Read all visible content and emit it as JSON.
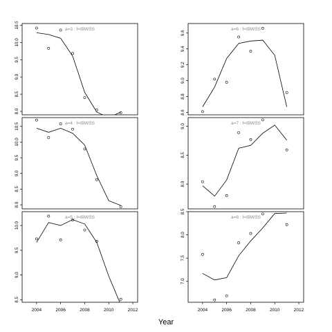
{
  "figure": {
    "xlabel": "Year",
    "x_ticks": [
      2004,
      2006,
      2008,
      2010,
      2012
    ],
    "xlim": [
      2002.8,
      2012.4
    ]
  },
  "chart_data": [
    {
      "type": "line",
      "panel": "left-1",
      "title": "a=3 : f=IBWSS",
      "ylim": [
        7.9,
        10.55
      ],
      "y_ticks": [
        "8.0",
        "8.5",
        "9.0",
        "9.5",
        "10.0",
        "10.5"
      ],
      "show_x_ticks": false,
      "line": {
        "x": [
          2004,
          2005,
          2006,
          2007,
          2008,
          2009,
          2010,
          2011
        ],
        "y": [
          10.28,
          10.23,
          10.12,
          9.6,
          8.55,
          7.98,
          7.82,
          7.98
        ]
      },
      "points": {
        "x": [
          2004,
          2005,
          2006,
          2007,
          2008,
          2009,
          2011
        ],
        "y": [
          10.42,
          9.83,
          10.36,
          9.68,
          8.4,
          8.04,
          7.96
        ]
      }
    },
    {
      "type": "line",
      "panel": "right-1",
      "title": "a=6 : f=IBWSS",
      "ylim": [
        8.57,
        9.72
      ],
      "y_ticks": [
        "8.6",
        "8.8",
        "9.0",
        "9.2",
        "9.4",
        "9.6"
      ],
      "show_x_ticks": false,
      "line": {
        "x": [
          2004,
          2005,
          2006,
          2007,
          2008,
          2009,
          2010,
          2011
        ],
        "y": [
          8.67,
          8.92,
          9.28,
          9.47,
          9.5,
          9.51,
          9.32,
          8.67
        ]
      },
      "points": {
        "x": [
          2004,
          2005,
          2006,
          2007,
          2008,
          2009,
          2011
        ],
        "y": [
          8.61,
          9.02,
          8.98,
          9.55,
          9.37,
          9.66,
          8.85
        ]
      }
    },
    {
      "type": "line",
      "panel": "left-2",
      "title": "a=4 : f=IBWSS",
      "ylim": [
        7.87,
        10.78
      ],
      "y_ticks": [
        "8.0",
        "8.5",
        "9.0",
        "9.5",
        "10.0",
        "10.5"
      ],
      "show_x_ticks": false,
      "line": {
        "x": [
          2004,
          2005,
          2006,
          2007,
          2008,
          2009,
          2010,
          2011
        ],
        "y": [
          10.44,
          10.31,
          10.44,
          10.28,
          9.9,
          8.93,
          8.13,
          7.98
        ]
      },
      "points": {
        "x": [
          2004,
          2005,
          2006,
          2007,
          2008,
          2009,
          2011
        ],
        "y": [
          10.7,
          10.14,
          10.58,
          10.41,
          9.78,
          8.8,
          7.94
        ]
      }
    },
    {
      "type": "line",
      "panel": "right-2",
      "title": "a=7 : f=IBWSS",
      "ylim": [
        7.57,
        9.15
      ],
      "y_ticks": [
        "8.0",
        "8.5",
        "9.0"
      ],
      "show_x_ticks": false,
      "line": {
        "x": [
          2004,
          2005,
          2006,
          2007,
          2008,
          2009,
          2010,
          2011
        ],
        "y": [
          7.97,
          7.79,
          8.07,
          8.62,
          8.67,
          8.88,
          9.02,
          8.76
        ]
      },
      "points": {
        "x": [
          2004,
          2005,
          2006,
          2007,
          2008,
          2009,
          2011
        ],
        "y": [
          8.04,
          7.61,
          7.8,
          8.89,
          8.77,
          9.11,
          8.59
        ]
      }
    },
    {
      "type": "line",
      "panel": "left-3",
      "title": "a=5 : f=IBWSS",
      "ylim": [
        8.45,
        10.28
      ],
      "y_ticks": [
        "8.5",
        "9.0",
        "9.5",
        "10.0"
      ],
      "show_x_ticks": true,
      "line": {
        "x": [
          2004,
          2005,
          2006,
          2007,
          2008,
          2009,
          2010,
          2011
        ],
        "y": [
          9.66,
          10.06,
          10.0,
          10.12,
          10.03,
          9.66,
          8.98,
          8.4
        ]
      },
      "points": {
        "x": [
          2004,
          2005,
          2006,
          2007,
          2008,
          2009,
          2011
        ],
        "y": [
          9.73,
          10.19,
          9.71,
          10.11,
          9.91,
          9.68,
          8.51
        ]
      }
    },
    {
      "type": "line",
      "panel": "right-3",
      "title": "a=8 : f=IBWSS",
      "ylim": [
        6.55,
        8.5
      ],
      "y_ticks": [
        "7.0",
        "7.5",
        "8.0",
        "8.5"
      ],
      "show_x_ticks": true,
      "line": {
        "x": [
          2004,
          2005,
          2006,
          2007,
          2008,
          2009,
          2010,
          2011
        ],
        "y": [
          7.17,
          7.03,
          7.08,
          7.55,
          7.87,
          8.15,
          8.46,
          8.47
        ]
      },
      "points": {
        "x": [
          2004,
          2005,
          2006,
          2007,
          2008,
          2009,
          2011
        ],
        "y": [
          7.58,
          6.6,
          6.69,
          7.83,
          8.03,
          8.45,
          8.22
        ]
      }
    }
  ]
}
